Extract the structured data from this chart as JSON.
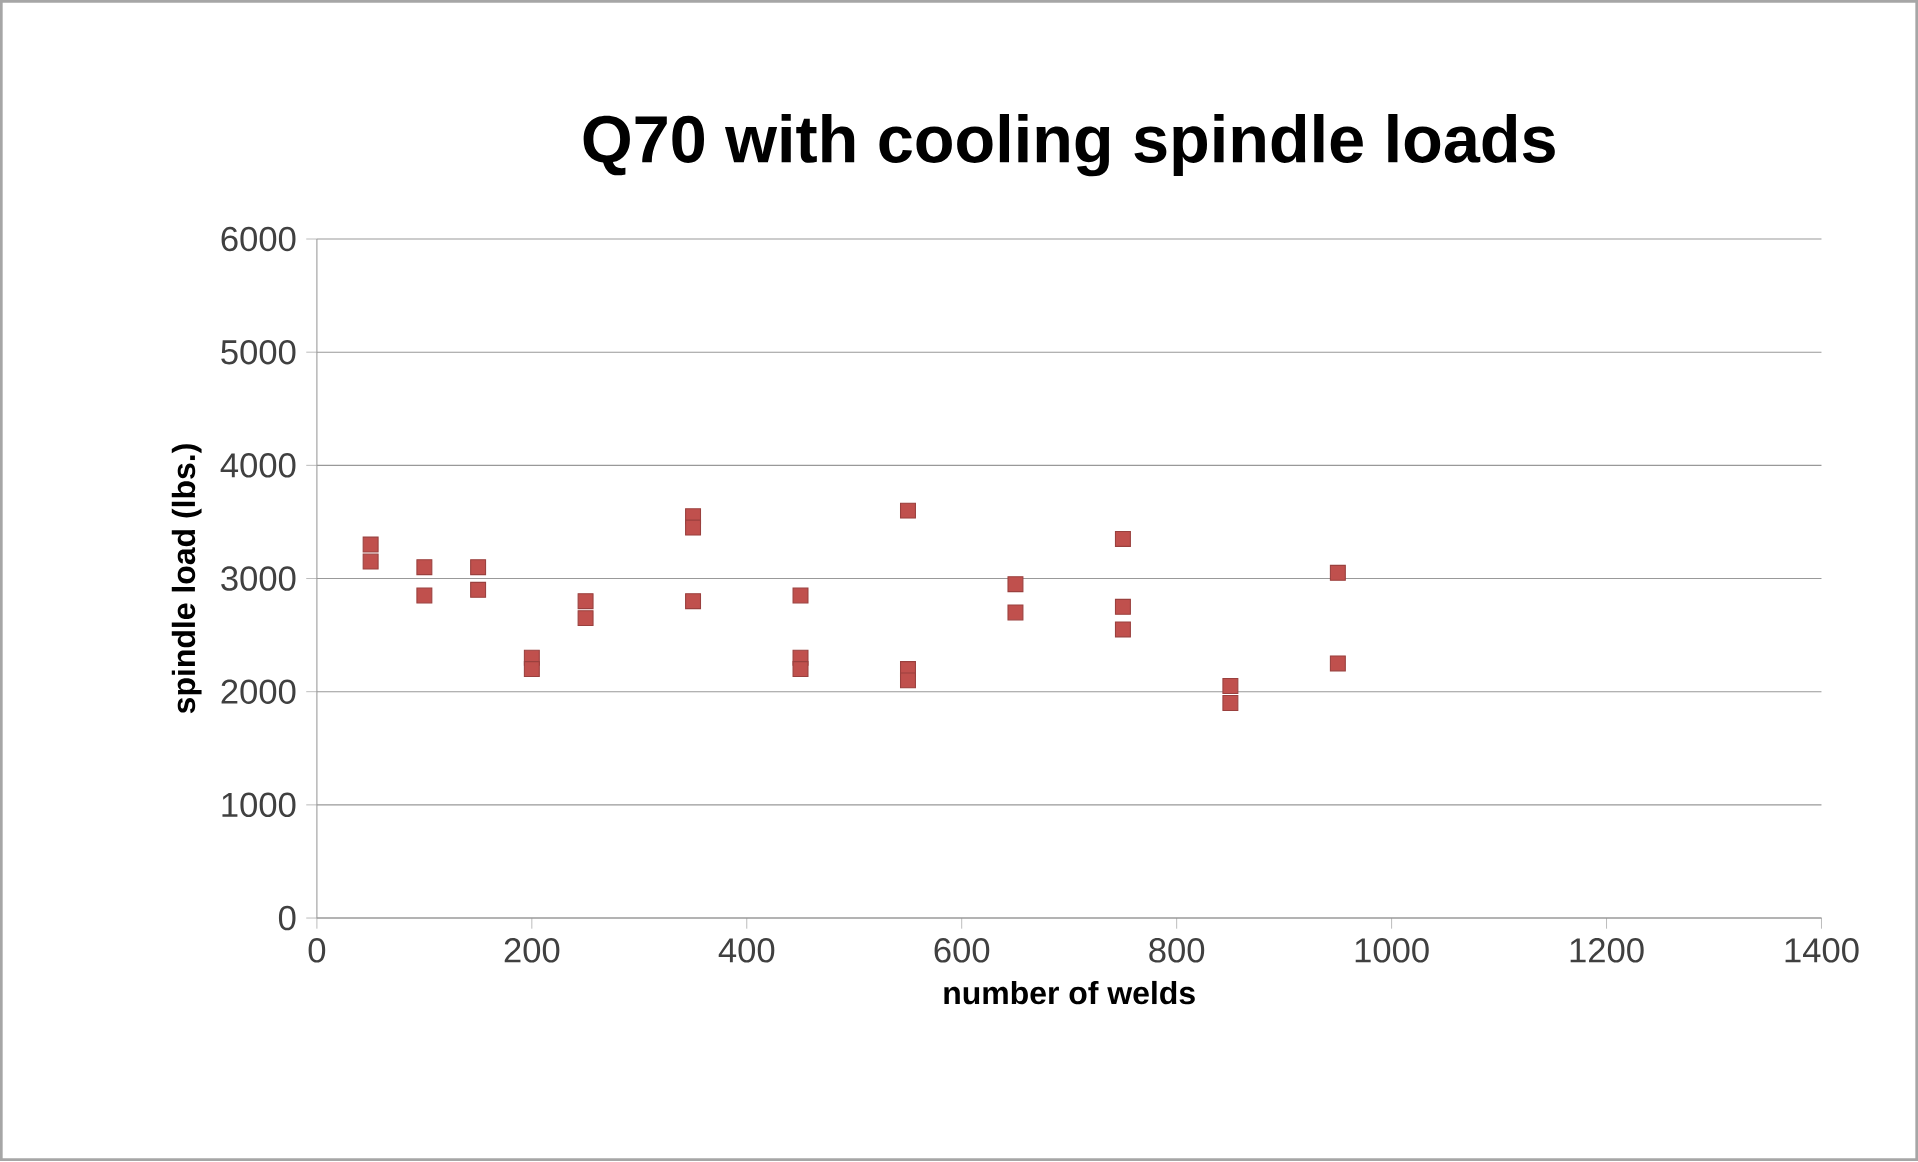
{
  "chart_data": {
    "type": "scatter",
    "title": "Q70 with cooling spindle loads",
    "xlabel": "number of welds",
    "ylabel": "spindle load (lbs.)",
    "x": [
      50,
      50,
      100,
      100,
      150,
      150,
      200,
      200,
      250,
      250,
      350,
      350,
      350,
      450,
      450,
      450,
      550,
      550,
      550,
      650,
      650,
      750,
      750,
      750,
      850,
      850,
      950,
      950
    ],
    "values": [
      3300,
      3150,
      3100,
      2850,
      3100,
      2900,
      2300,
      2200,
      2800,
      2650,
      3550,
      3450,
      2800,
      2850,
      2300,
      2200,
      3600,
      2200,
      2100,
      2950,
      2700,
      3350,
      2750,
      2550,
      2050,
      1900,
      3050,
      2250
    ],
    "color": "#c0504d",
    "marker": "square",
    "grid": "y",
    "xlim": [
      0,
      1400
    ],
    "ylim": [
      0,
      6000
    ],
    "xticks": [
      0,
      200,
      400,
      600,
      800,
      1000,
      1200,
      1400
    ],
    "yticks": [
      0,
      1000,
      2000,
      3000,
      4000,
      5000,
      6000
    ]
  }
}
